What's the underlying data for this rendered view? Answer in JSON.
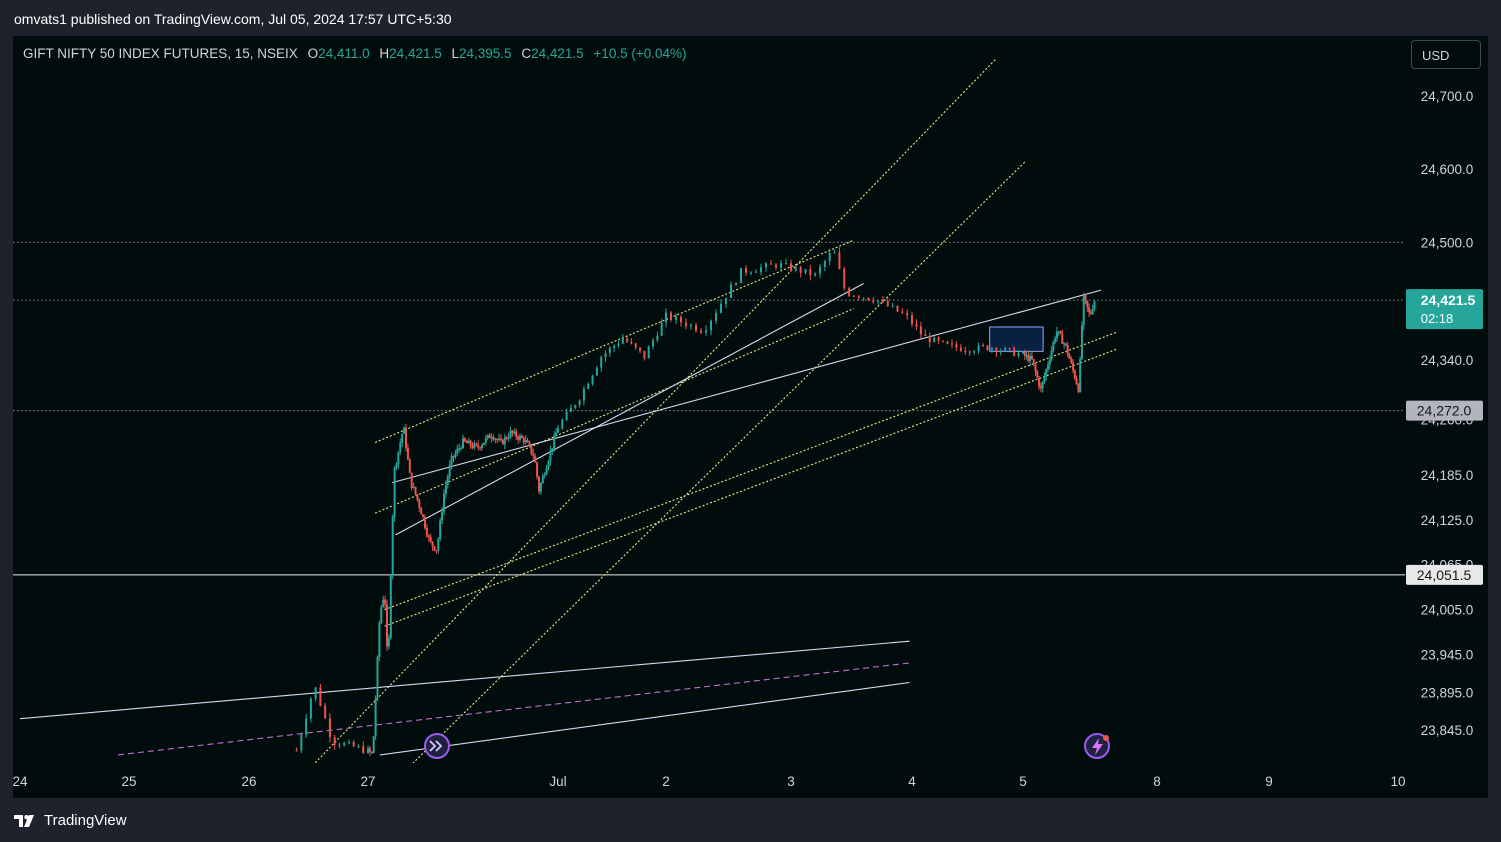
{
  "header": {
    "published_by": "omvats1 published on TradingView.com, Jul 05, 2024 17:57 UTC+5:30"
  },
  "legend": {
    "symbol": "GIFT NIFTY 50 INDEX FUTURES, 15, NSEIX",
    "open_label": "O",
    "open": "24,411.0",
    "high_label": "H",
    "high": "24,421.5",
    "low_label": "L",
    "low": "24,395.5",
    "close_label": "C",
    "close": "24,421.5",
    "change": "+10.5 (+0.04%)"
  },
  "currency_button": "USD",
  "brand": {
    "name": "TradingView",
    "icon": "tradingview-logo-icon"
  },
  "colors": {
    "background": "#010d0c",
    "up": "#26a69a",
    "down": "#ef5350",
    "trend_yellow": "#f0e68c",
    "trend_white": "#d8d8f0",
    "dashed_purple": "#c86cd8",
    "last_price_tag": "#26a69a"
  },
  "chart_data": {
    "type": "candlestick",
    "title": "",
    "interval": "15",
    "x_ticks": [
      "24",
      "25",
      "26",
      "27",
      "Jul",
      "2",
      "3",
      "4",
      "5",
      "8",
      "9",
      "10"
    ],
    "y_ticks": [
      "24,700.0",
      "24,600.0",
      "24,500.0",
      "24,340.0",
      "24,260.0",
      "24,185.0",
      "24,125.0",
      "24,065.0",
      "24,005.0",
      "23,945.0",
      "23,895.0",
      "23,845.0"
    ],
    "y_scale": "log",
    "ylim": [
      23800,
      24760
    ],
    "last_price": {
      "value": "24,421.5",
      "countdown": "02:18"
    },
    "price_labels": [
      {
        "value": "24,272.0",
        "style": "gray"
      },
      {
        "value": "24,051.5",
        "style": "white"
      }
    ],
    "horizontal_lines": [
      {
        "price": 24500.0,
        "style": "dotted"
      },
      {
        "price": 24421.5,
        "style": "dotted"
      },
      {
        "price": 24272.0,
        "style": "dotted"
      },
      {
        "price": 24051.5,
        "style": "solid"
      }
    ],
    "ohlc_path": [
      {
        "d": 26.4,
        "p": 23818
      },
      {
        "d": 26.55,
        "p": 23905
      },
      {
        "d": 26.7,
        "p": 23830
      },
      {
        "d": 26.9,
        "p": 23822
      },
      {
        "d": 27.1,
        "p": 23812
      },
      {
        "d": 27.25,
        "p": 24000
      },
      {
        "d": 27.35,
        "p": 24030
      },
      {
        "d": 27.42,
        "p": 23920
      },
      {
        "d": 27.48,
        "p": 24055
      },
      {
        "d": 27.55,
        "p": 24190
      },
      {
        "d": 27.75,
        "p": 24250
      },
      {
        "d": 27.9,
        "p": 24175
      },
      {
        "d": 28.0,
        "p": 24160
      },
      {
        "d": 28.15,
        "p": 24130
      },
      {
        "d": 28.3,
        "p": 24095
      },
      {
        "d": 28.45,
        "p": 24085
      },
      {
        "d": 28.6,
        "p": 24160
      },
      {
        "d": 28.75,
        "p": 24205
      },
      {
        "d": 29.0,
        "p": 24230
      },
      {
        "d": 29.3,
        "p": 24222
      },
      {
        "d": 29.6,
        "p": 24240
      },
      {
        "d": 29.8,
        "p": 24228
      },
      {
        "d": 30.0,
        "p": 24242
      },
      {
        "d": 30.3,
        "p": 24232
      },
      {
        "d": 30.5,
        "p": 24210
      },
      {
        "d": 30.6,
        "p": 24165
      },
      {
        "d": 30.8,
        "p": 24208
      },
      {
        "d": 31.0,
        "p": 24250
      },
      {
        "d": 31.2,
        "p": 24290
      },
      {
        "d": 31.4,
        "p": 24345
      },
      {
        "d": 31.6,
        "p": 24370
      },
      {
        "d": 31.8,
        "p": 24345
      },
      {
        "d": 32.0,
        "p": 24400
      },
      {
        "d": 32.3,
        "p": 24380
      },
      {
        "d": 32.6,
        "p": 24460
      },
      {
        "d": 32.9,
        "p": 24470
      },
      {
        "d": 33.2,
        "p": 24455
      },
      {
        "d": 33.35,
        "p": 24490
      },
      {
        "d": 33.45,
        "p": 24432
      },
      {
        "d": 33.7,
        "p": 24422
      },
      {
        "d": 33.95,
        "p": 24400
      },
      {
        "d": 34.1,
        "p": 24372
      },
      {
        "d": 34.3,
        "p": 24360
      },
      {
        "d": 34.5,
        "p": 24355
      },
      {
        "d": 34.7,
        "p": 24358
      },
      {
        "d": 35.2,
        "p": 24340
      },
      {
        "d": 35.4,
        "p": 24300
      },
      {
        "d": 35.6,
        "p": 24345
      },
      {
        "d": 35.75,
        "p": 24380
      },
      {
        "d": 35.95,
        "p": 24360
      },
      {
        "d": 36.1,
        "p": 24330
      },
      {
        "d": 36.25,
        "p": 24300
      },
      {
        "d": 36.35,
        "p": 24425
      },
      {
        "d": 36.5,
        "p": 24400
      },
      {
        "d": 36.6,
        "p": 24421.5
      }
    ],
    "drawings": [
      {
        "kind": "trendline",
        "style": "dotted-yellow",
        "d1": 26.3,
        "p1": 23760,
        "d2": 34.75,
        "p2": 24750
      },
      {
        "kind": "trendline",
        "style": "dotted-yellow",
        "d1": 27.28,
        "p1": 23760,
        "d2": 35.05,
        "p2": 24610
      },
      {
        "kind": "trendline",
        "style": "dotted-yellow",
        "d1": 27.15,
        "p1": 24229,
        "d2": 33.52,
        "p2": 24503
      },
      {
        "kind": "trendline",
        "style": "dotted-yellow",
        "d1": 27.15,
        "p1": 24134,
        "d2": 33.52,
        "p2": 24410
      },
      {
        "kind": "trendline",
        "style": "dotted-yellow",
        "d1": 27.35,
        "p1": 24005,
        "d2": 37.1,
        "p2": 24378
      },
      {
        "kind": "trendline",
        "style": "dotted-yellow",
        "d1": 27.35,
        "p1": 23983,
        "d2": 37.1,
        "p2": 24355
      },
      {
        "kind": "trendline",
        "style": "solid-white",
        "d1": 27.51,
        "p1": 24175,
        "d2": 36.75,
        "p2": 24435
      },
      {
        "kind": "trendline",
        "style": "solid-white",
        "d1": 27.58,
        "p1": 24105,
        "d2": 33.6,
        "p2": 24444
      },
      {
        "kind": "trendline",
        "style": "solid-white",
        "d1": 24.0,
        "p1": 23860,
        "d2": 33.98,
        "p2": 23963
      },
      {
        "kind": "trendline",
        "style": "solid-white",
        "d1": 27.25,
        "p1": 23812,
        "d2": 33.98,
        "p2": 23908
      },
      {
        "kind": "trendline",
        "style": "dashed-purple",
        "d1": 24.9,
        "p1": 23812,
        "d2": 33.98,
        "p2": 23934
      }
    ],
    "rectangle": {
      "d1": 34.7,
      "p1": 24385,
      "d2": 35.45,
      "p2": 24352
    }
  }
}
